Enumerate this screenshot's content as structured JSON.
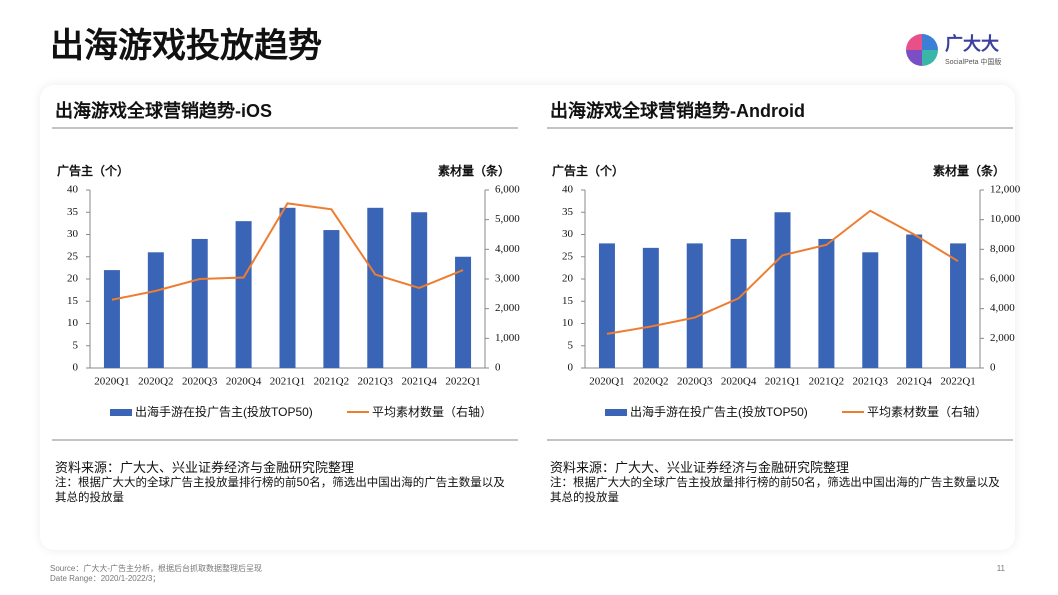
{
  "header": {
    "title": "出海游戏投放趋势",
    "logo": "广大大",
    "logo_sub": "SocialPeta 中国版"
  },
  "chart_data": [
    {
      "type": "bar_line",
      "title": "出海游戏全球营销趋势-iOS",
      "ylabel": "广告主（个）",
      "y2label": "素材量（条）",
      "categories": [
        "2020Q1",
        "2020Q2",
        "2020Q3",
        "2020Q4",
        "2021Q1",
        "2021Q2",
        "2021Q3",
        "2021Q4",
        "2022Q1"
      ],
      "series": [
        {
          "name": "出海手游在投广告主(投放TOP50)",
          "type": "bar",
          "color": "#3a64b5",
          "values": [
            22,
            26,
            29,
            33,
            36,
            31,
            36,
            35,
            25
          ]
        },
        {
          "name": "平均素材数量（右轴）",
          "type": "line",
          "axis": "y2",
          "color": "#ed7d31",
          "values": [
            2300,
            2600,
            3000,
            3050,
            5550,
            5350,
            3150,
            2700,
            3300
          ]
        }
      ],
      "ylim": [
        0,
        40
      ],
      "yticks": [
        0,
        5,
        10,
        15,
        20,
        25,
        30,
        35,
        40
      ],
      "y2lim": [
        0,
        6000
      ],
      "y2ticks": [
        0,
        {
          "value": 1000,
          "label": "1,000"
        },
        {
          "value": 2000,
          "label": "2,000"
        },
        {
          "value": 3000,
          "label": "3,000"
        },
        {
          "value": 4000,
          "label": "4,000"
        },
        {
          "value": 5000,
          "label": "5,000"
        },
        {
          "value": 6000,
          "label": "6,000"
        }
      ],
      "source": "资料来源：广大大、兴业证券经济与金融研究院整理",
      "note": "注：根据广大大的全球广告主投放量排行榜的前50名，筛选出中国出海的广告主数量以及其总的投放量"
    },
    {
      "type": "bar_line",
      "title": "出海游戏全球营销趋势-Android",
      "ylabel": "广告主（个）",
      "y2label": "素材量（条）",
      "categories": [
        "2020Q1",
        "2020Q2",
        "2020Q3",
        "2020Q4",
        "2021Q1",
        "2021Q2",
        "2021Q3",
        "2021Q4",
        "2022Q1"
      ],
      "series": [
        {
          "name": "出海手游在投广告主(投放TOP50)",
          "type": "bar",
          "color": "#3a64b5",
          "values": [
            28,
            27,
            28,
            29,
            35,
            29,
            26,
            30,
            28
          ]
        },
        {
          "name": "平均素材数量（右轴）",
          "type": "line",
          "axis": "y2",
          "color": "#ed7d31",
          "values": [
            2300,
            2800,
            3400,
            4700,
            7600,
            8300,
            10600,
            9000,
            7200
          ]
        }
      ],
      "ylim": [
        0,
        40
      ],
      "yticks": [
        0,
        5,
        10,
        15,
        20,
        25,
        30,
        35,
        40
      ],
      "y2lim": [
        0,
        12000
      ],
      "y2ticks": [
        0,
        {
          "value": 2000,
          "label": "2,000"
        },
        {
          "value": 4000,
          "label": "4,000"
        },
        {
          "value": 6000,
          "label": "6,000"
        },
        {
          "value": 8000,
          "label": "8,000"
        },
        {
          "value": 10000,
          "label": "10,000"
        },
        {
          "value": 12000,
          "label": "12,000"
        }
      ],
      "source": "资料来源：广大大、兴业证券经济与金融研究院整理",
      "note": "注：根据广大大的全球广告主投放量排行榜的前50名，筛选出中国出海的广告主数量以及其总的投放量"
    }
  ],
  "footer": {
    "source": "Source：广大大-广告主分析，根据后台抓取数据整理后呈现",
    "date_range": "Date Range：2020/1-2022/3；",
    "page": "11"
  }
}
